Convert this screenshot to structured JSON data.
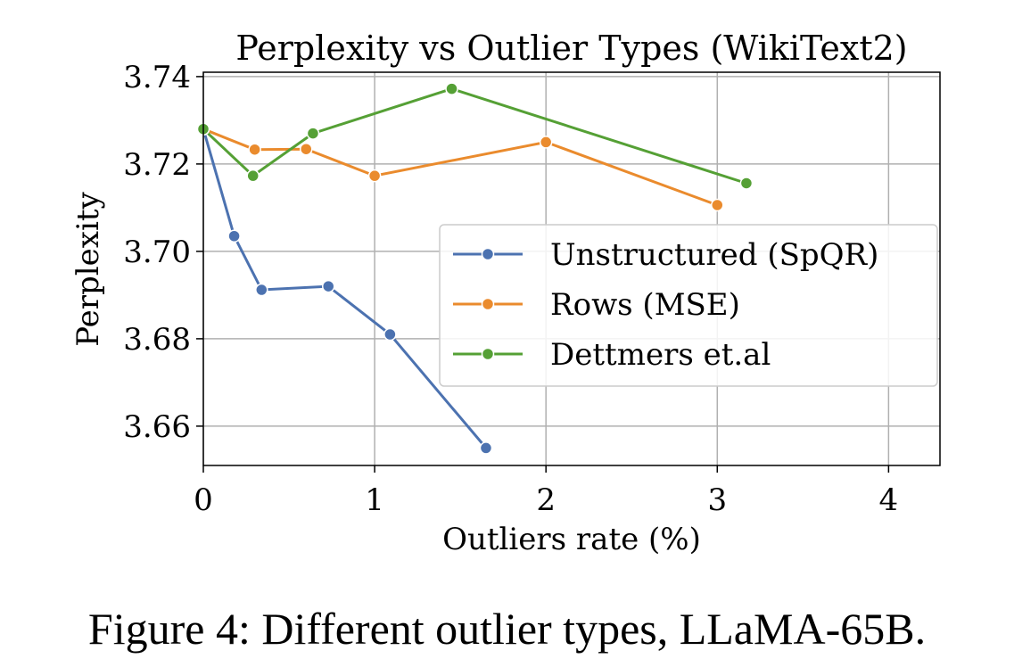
{
  "chart_data": {
    "type": "line",
    "title": "Perplexity vs Outlier Types (WikiText2)",
    "xlabel": "Outliers rate (%)",
    "ylabel": "Perplexity",
    "xlim": [
      0,
      4.3
    ],
    "ylim": [
      3.651,
      3.741
    ],
    "xticks": [
      0,
      1,
      2,
      3,
      4
    ],
    "xtick_labels": [
      "0",
      "1",
      "2",
      "3",
      "4"
    ],
    "yticks": [
      3.66,
      3.68,
      3.7,
      3.72,
      3.74
    ],
    "ytick_labels": [
      "3.66",
      "3.68",
      "3.70",
      "3.72",
      "3.74"
    ],
    "grid": true,
    "legend_position": "center-right",
    "series": [
      {
        "name": "Unstructured (SpQR)",
        "color": "#4c72b0",
        "x": [
          0,
          0.18,
          0.34,
          0.73,
          1.09,
          1.65
        ],
        "y": [
          3.728,
          3.7035,
          3.6912,
          3.692,
          3.681,
          3.655
        ]
      },
      {
        "name": "Rows (MSE)",
        "color": "#ea8b2d",
        "x": [
          0,
          0.3,
          0.6,
          1.0,
          2.0,
          3.0
        ],
        "y": [
          3.728,
          3.7233,
          3.7234,
          3.7173,
          3.725,
          3.7106
        ]
      },
      {
        "name": "Dettmers et.al",
        "color": "#55a035",
        "x": [
          0,
          0.29,
          0.64,
          1.45,
          3.17
        ],
        "y": [
          3.728,
          3.7173,
          3.727,
          3.7372,
          3.7156
        ]
      }
    ]
  },
  "caption": "Figure 4: Different outlier types, LLaMA-65B."
}
